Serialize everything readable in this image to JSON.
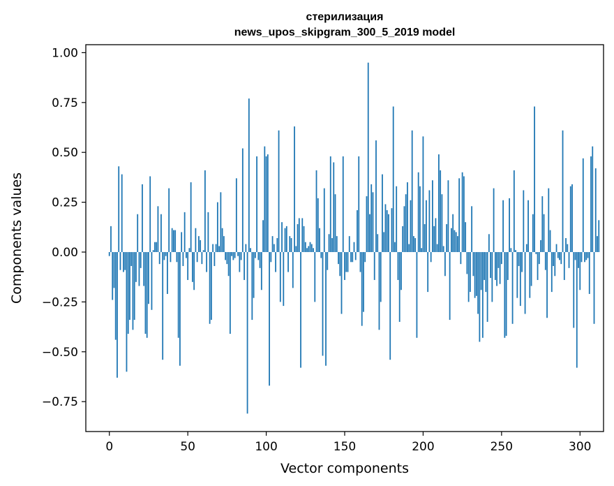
{
  "chart_data": {
    "type": "bar",
    "title": "стерилизация",
    "subtitle": "news_upos_skipgram_300_5_2019 model",
    "xlabel": "Vector components",
    "ylabel": "Components values",
    "xlim": [
      -15,
      315
    ],
    "ylim": [
      -0.9,
      1.04
    ],
    "xticks": [
      0,
      50,
      100,
      150,
      200,
      250,
      300
    ],
    "xtick_labels": [
      "0",
      "50",
      "100",
      "150",
      "200",
      "250",
      "300"
    ],
    "yticks": [
      1.0,
      0.75,
      0.5,
      0.25,
      0.0,
      -0.25,
      -0.5,
      -0.75
    ],
    "ytick_labels": [
      "1.00",
      "0.75",
      "0.50",
      "0.25",
      "0.00",
      "−0.25",
      "−0.50",
      "−0.75"
    ],
    "grid": false,
    "bar_color": "#1f77b4",
    "values": [
      -0.02,
      0.13,
      -0.24,
      -0.18,
      -0.44,
      -0.63,
      0.43,
      -0.09,
      0.39,
      -0.1,
      -0.09,
      -0.6,
      -0.41,
      -0.34,
      -0.07,
      -0.39,
      -0.34,
      -0.15,
      0.19,
      -0.17,
      -0.08,
      0.34,
      -0.17,
      -0.41,
      -0.43,
      -0.26,
      0.38,
      -0.29,
      0.01,
      0.05,
      0.05,
      0.23,
      -0.06,
      0.19,
      -0.54,
      -0.04,
      -0.02,
      -0.21,
      0.32,
      -0.05,
      0.12,
      0.11,
      0.11,
      -0.05,
      -0.43,
      -0.57,
      0.1,
      -0.07,
      0.2,
      -0.03,
      -0.14,
      0.02,
      0.35,
      -0.15,
      -0.19,
      0.12,
      -0.05,
      0.08,
      0.06,
      -0.06,
      0.01,
      0.41,
      -0.1,
      0.2,
      -0.36,
      -0.34,
      0.04,
      -0.07,
      0.04,
      0.25,
      0.03,
      0.3,
      0.12,
      0.08,
      -0.04,
      -0.06,
      -0.12,
      -0.41,
      -0.02,
      -0.04,
      -0.03,
      0.37,
      -0.02,
      -0.1,
      -0.04,
      0.52,
      -0.14,
      0.04,
      -0.81,
      0.77,
      0.02,
      -0.34,
      -0.23,
      -0.03,
      0.48,
      -0.04,
      -0.08,
      -0.19,
      0.16,
      0.53,
      0.48,
      0.49,
      -0.67,
      -0.05,
      0.08,
      0.04,
      -0.1,
      0.07,
      0.61,
      -0.25,
      0.15,
      -0.27,
      0.12,
      0.13,
      -0.1,
      0.08,
      0.07,
      -0.18,
      0.63,
      0.03,
      0.14,
      0.17,
      -0.58,
      0.17,
      0.13,
      0.05,
      0.02,
      0.03,
      0.05,
      0.04,
      0.02,
      -0.25,
      0.41,
      0.27,
      0.12,
      -0.03,
      -0.52,
      0.32,
      -0.57,
      -0.09,
      0.09,
      0.48,
      0.07,
      0.45,
      0.29,
      0.08,
      -0.06,
      -0.12,
      -0.31,
      0.48,
      -0.14,
      -0.1,
      -0.1,
      0.08,
      -0.05,
      -0.05,
      0.05,
      -0.04,
      0.21,
      0.48,
      -0.1,
      -0.37,
      -0.3,
      -0.05,
      0.28,
      0.95,
      0.19,
      0.34,
      0.3,
      -0.14,
      0.56,
      0.09,
      -0.39,
      -0.25,
      0.39,
      0.1,
      0.24,
      0.21,
      0.19,
      -0.54,
      0.22,
      0.73,
      0.05,
      0.33,
      -0.14,
      -0.35,
      -0.19,
      0.13,
      0.23,
      0.29,
      0.35,
      0.04,
      0.26,
      0.61,
      0.08,
      0.07,
      -0.43,
      0.4,
      0.33,
      0.02,
      0.58,
      0.14,
      0.26,
      -0.2,
      0.31,
      -0.05,
      0.36,
      0.13,
      0.17,
      0.04,
      0.49,
      0.41,
      0.29,
      0.03,
      -0.12,
      0.14,
      0.36,
      -0.34,
      0.12,
      0.19,
      0.11,
      0.1,
      0.08,
      0.37,
      -0.06,
      0.4,
      0.38,
      0.15,
      -0.11,
      -0.25,
      -0.2,
      0.23,
      -0.12,
      -0.23,
      -0.22,
      -0.31,
      -0.45,
      -0.19,
      -0.43,
      -0.14,
      -0.2,
      -0.35,
      0.09,
      -0.13,
      -0.25,
      0.32,
      -0.14,
      -0.17,
      -0.08,
      -0.16,
      -0.06,
      0.26,
      -0.43,
      -0.42,
      -0.14,
      0.27,
      0.02,
      -0.36,
      0.41,
      0.01,
      -0.23,
      -0.07,
      -0.27,
      -0.1,
      0.31,
      -0.31,
      0.04,
      0.26,
      -0.23,
      -0.17,
      0.19,
      0.73,
      -0.01,
      -0.14,
      -0.06,
      0.06,
      0.28,
      0.19,
      -0.09,
      -0.33,
      0.32,
      0.11,
      -0.2,
      -0.07,
      -0.12,
      0.04,
      -0.03,
      -0.04,
      -0.06,
      0.61,
      -0.14,
      0.07,
      0.04,
      -0.08,
      0.33,
      0.34,
      -0.38,
      -0.04,
      -0.58,
      -0.08,
      -0.19,
      -0.05,
      0.47,
      -0.05,
      -0.04,
      -0.03,
      -0.21,
      0.48,
      0.53,
      -0.36,
      0.42,
      0.08,
      0.16
    ]
  }
}
